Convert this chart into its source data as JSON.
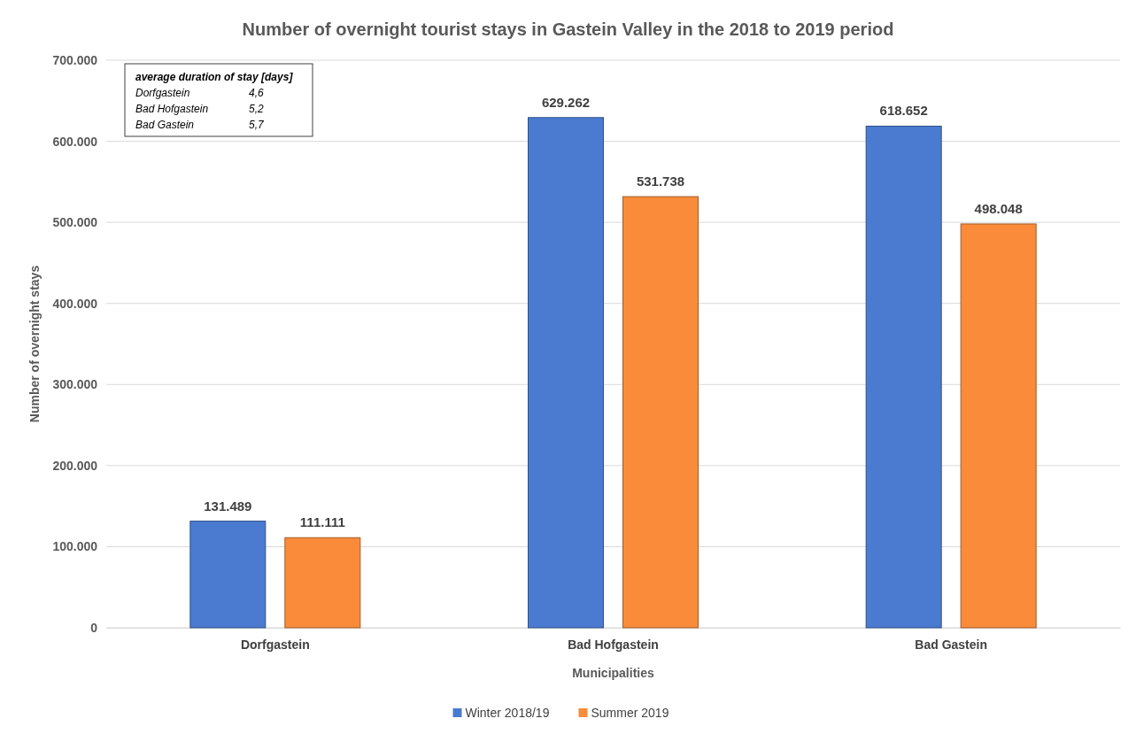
{
  "chart_data": {
    "type": "bar",
    "title": "Number of overnight tourist stays in Gastein Valley in the 2018 to 2019 period",
    "xlabel": "Municipalities",
    "ylabel": "Number of overnight stays",
    "categories": [
      "Dorfgastein",
      "Bad Hofgastein",
      "Bad Gastein"
    ],
    "series": [
      {
        "name": "Winter 2018/19",
        "color": "#4a7bd0",
        "values": [
          131489,
          629262,
          618652
        ],
        "value_labels": [
          "131.489",
          "629.262",
          "618.652"
        ]
      },
      {
        "name": "Summer 2019",
        "color": "#f98b3a",
        "values": [
          111111,
          531738,
          498048
        ],
        "value_labels": [
          "111.111",
          "531.738",
          "498.048"
        ]
      }
    ],
    "ylim": [
      0,
      700000
    ],
    "yticks": [
      {
        "value": 0,
        "label": "0"
      },
      {
        "value": 100000,
        "label": "100.000"
      },
      {
        "value": 200000,
        "label": "200.000"
      },
      {
        "value": 300000,
        "label": "300.000"
      },
      {
        "value": 400000,
        "label": "400.000"
      },
      {
        "value": 500000,
        "label": "500.000"
      },
      {
        "value": 600000,
        "label": "600.000"
      },
      {
        "value": 700000,
        "label": "700.000"
      }
    ],
    "grid": "y",
    "legend": "bottom",
    "annotations": [
      "average duration of stay [days]",
      "Dorfgastein 4,6",
      "Bad Hofgastein 5,2",
      "Bad Gastein 5,7"
    ]
  }
}
